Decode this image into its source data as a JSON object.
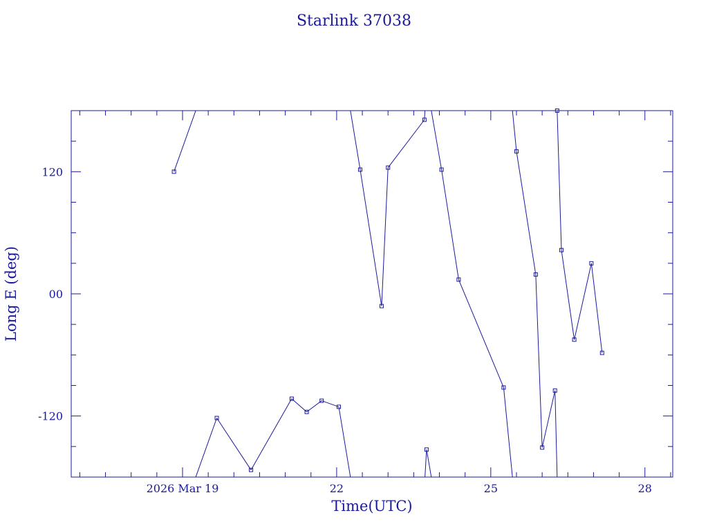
{
  "chart_data": {
    "type": "line",
    "title": "Starlink 37038",
    "xlabel": "Time(UTC)",
    "ylabel": "Long E (deg)",
    "color": "#1a1a9a",
    "xlim": [
      "2026-03-16T20:00",
      "2026-03-28T13:00"
    ],
    "ylim": [
      -180,
      180
    ],
    "x_ticks": [
      {
        "value": "2026-03-19T00:00",
        "label": "2026 Mar 19"
      },
      {
        "value": "2026-03-22T00:00",
        "label": "22"
      },
      {
        "value": "2026-03-25T00:00",
        "label": "25"
      },
      {
        "value": "2026-03-28T00:00",
        "label": "28"
      }
    ],
    "y_ticks": [
      {
        "value": 120,
        "label": "120"
      },
      {
        "value": 0,
        "label": "00"
      },
      {
        "value": -120,
        "label": "-120"
      }
    ],
    "series": [
      {
        "points": [
          [
            "2026-03-18T20:00",
            120
          ],
          [
            "2026-03-19T16:00",
            -122
          ],
          [
            "2026-03-20T08:00",
            -173
          ],
          [
            "2026-03-21T03:00",
            -103
          ],
          [
            "2026-03-21T10:00",
            -116
          ],
          [
            "2026-03-21T17:00",
            -105
          ],
          [
            "2026-03-22T01:00",
            -111
          ],
          [
            "2026-03-22T11:00",
            122
          ],
          [
            "2026-03-22T21:00",
            -12
          ],
          [
            "2026-03-23T00:00",
            124
          ],
          [
            "2026-03-23T17:00",
            171
          ],
          [
            "2026-03-23T18:00",
            -153
          ],
          [
            "2026-03-24T01:00",
            122
          ],
          [
            "2026-03-24T09:00",
            14
          ],
          [
            "2026-03-25T06:00",
            -92
          ],
          [
            "2026-03-25T12:00",
            140
          ],
          [
            "2026-03-25T21:00",
            19
          ],
          [
            "2026-03-26T00:00",
            -151
          ],
          [
            "2026-03-26T06:00",
            -95
          ],
          [
            "2026-03-26T07:00",
            180
          ],
          [
            "2026-03-26T09:00",
            43
          ],
          [
            "2026-03-26T15:00",
            -45
          ],
          [
            "2026-03-26T23:00",
            30
          ],
          [
            "2026-03-27T04:00",
            -58
          ]
        ]
      }
    ]
  }
}
